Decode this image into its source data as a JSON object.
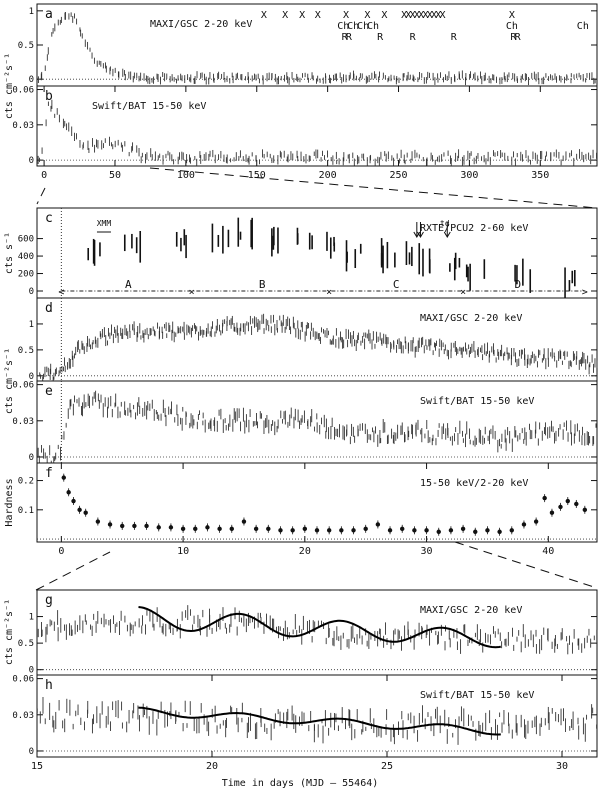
{
  "chart_data": [
    {
      "id": "a",
      "type": "scatter",
      "panel_letter": "a",
      "label": "MAXI/GSC 2-20 keV",
      "xlim": [
        -5,
        390
      ],
      "ylim": [
        -0.1,
        1.1
      ],
      "yticks": [
        {
          "v": 0,
          "t": "0"
        },
        {
          "v": 0.5,
          "t": "0.5"
        },
        {
          "v": 1,
          "t": "1"
        }
      ],
      "xticks": [],
      "ylabel": "",
      "profile": [
        [
          -5,
          0.01
        ],
        [
          0,
          0.02
        ],
        [
          3,
          0.45
        ],
        [
          8,
          0.8
        ],
        [
          16,
          0.95
        ],
        [
          22,
          0.9
        ],
        [
          28,
          0.6
        ],
        [
          35,
          0.3
        ],
        [
          45,
          0.12
        ],
        [
          60,
          0.04
        ],
        [
          80,
          0.02
        ],
        [
          200,
          0.02
        ],
        [
          390,
          0.02
        ]
      ],
      "noise": 0.05,
      "n_points": 260,
      "zero_line": true,
      "marks": {
        "x": [
          155,
          170,
          182,
          193,
          213,
          228,
          240,
          254,
          257,
          260,
          263,
          266,
          269,
          272,
          275,
          278,
          281,
          330
        ],
        "x_label": "X",
        "ch": [
          211,
          218,
          225,
          232,
          330,
          380
        ],
        "ch_label": "Ch",
        "r": [
          212,
          215,
          237,
          260,
          289,
          331,
          334
        ],
        "r_label": "R"
      }
    },
    {
      "id": "b",
      "type": "scatter",
      "panel_letter": "b",
      "label": "Swift/BAT 15-50 keV",
      "xlim": [
        -5,
        390
      ],
      "ylim": [
        -0.005,
        0.063
      ],
      "yticks": [
        {
          "v": 0,
          "t": "0"
        },
        {
          "v": 0.03,
          "t": "0.03"
        },
        {
          "v": 0.06,
          "t": "0.06"
        }
      ],
      "xticks": [
        {
          "v": 0,
          "t": "0"
        },
        {
          "v": 50,
          "t": "50"
        },
        {
          "v": 100,
          "t": "100"
        },
        {
          "v": 150,
          "t": "150"
        },
        {
          "v": 200,
          "t": "200"
        },
        {
          "v": 250,
          "t": "250"
        },
        {
          "v": 300,
          "t": "300"
        },
        {
          "v": 350,
          "t": "350"
        }
      ],
      "ylabel": "cts cm⁻²s⁻¹",
      "profile": [
        [
          -5,
          0.001
        ],
        [
          0,
          0.01
        ],
        [
          3,
          0.05
        ],
        [
          8,
          0.04
        ],
        [
          15,
          0.03
        ],
        [
          30,
          0.01
        ],
        [
          45,
          0.015
        ],
        [
          55,
          0.012
        ],
        [
          70,
          0.003
        ],
        [
          100,
          0.002
        ],
        [
          390,
          0.002
        ]
      ],
      "noise": 0.004,
      "n_points": 230,
      "zero_line": true
    },
    {
      "id": "c",
      "type": "scatter",
      "panel_letter": "c",
      "label": "RXTE/PCU2 2-60 keV",
      "xlim": [
        -2,
        44
      ],
      "ylim": [
        -80,
        950
      ],
      "yticks": [
        {
          "v": 0,
          "t": "0"
        },
        {
          "v": 200,
          "t": "200"
        },
        {
          "v": 400,
          "t": "400"
        },
        {
          "v": 600,
          "t": "600"
        }
      ],
      "xticks": [],
      "ylabel": "cts s⁻¹",
      "profile": [
        [
          3,
          480
        ],
        [
          6,
          520
        ],
        [
          10,
          560
        ],
        [
          13,
          620
        ],
        [
          15,
          680
        ],
        [
          18,
          600
        ],
        [
          20,
          580
        ],
        [
          22,
          520
        ],
        [
          24,
          430
        ],
        [
          26,
          420
        ],
        [
          28,
          380
        ],
        [
          30,
          330
        ],
        [
          32,
          290
        ],
        [
          34,
          200
        ],
        [
          38,
          160
        ],
        [
          42,
          120
        ]
      ],
      "noise": 60,
      "n_points": 70,
      "zero_line": false,
      "annotations": [
        {
          "x": 3.5,
          "text": "XMM"
        },
        {
          "x": 31.5,
          "text": "td"
        }
      ],
      "states": [
        {
          "text": "A",
          "x": 5.5
        },
        {
          "text": "B",
          "x": 16.5
        },
        {
          "text": "C",
          "x": 27.5
        },
        {
          "text": "D",
          "x": 37.5
        }
      ],
      "state_boundaries": [
        0,
        10.7,
        22,
        33,
        43
      ]
    },
    {
      "id": "d",
      "type": "scatter",
      "panel_letter": "d",
      "label": "MAXI/GSC 2-20 keV",
      "xlim": [
        -2,
        44
      ],
      "ylim": [
        -0.1,
        1.5
      ],
      "yticks": [
        {
          "v": 0,
          "t": "0"
        },
        {
          "v": 0.5,
          "t": "0.5"
        },
        {
          "v": 1,
          "t": "1"
        }
      ],
      "xticks": [],
      "ylabel": "",
      "profile": [
        [
          -2,
          0.02
        ],
        [
          -0.2,
          0.02
        ],
        [
          0.5,
          0.3
        ],
        [
          2,
          0.6
        ],
        [
          5,
          0.85
        ],
        [
          10,
          0.85
        ],
        [
          14,
          0.95
        ],
        [
          18,
          1.0
        ],
        [
          22,
          0.75
        ],
        [
          26,
          0.65
        ],
        [
          30,
          0.55
        ],
        [
          34,
          0.45
        ],
        [
          38,
          0.35
        ],
        [
          42,
          0.3
        ],
        [
          44,
          0.2
        ]
      ],
      "noise": 0.12,
      "n_points": 380,
      "zero_line": true
    },
    {
      "id": "e",
      "type": "scatter",
      "panel_letter": "e",
      "label": "Swift/BAT 15-50 keV",
      "xlim": [
        -2,
        44
      ],
      "ylim": [
        -0.005,
        0.063
      ],
      "yticks": [
        {
          "v": 0,
          "t": "0"
        },
        {
          "v": 0.03,
          "t": "0.03"
        },
        {
          "v": 0.06,
          "t": "0.06"
        }
      ],
      "xticks": [],
      "ylabel": "cts cm⁻²s⁻¹",
      "profile": [
        [
          -2,
          0.001
        ],
        [
          -0.1,
          0.002
        ],
        [
          0.6,
          0.045
        ],
        [
          2,
          0.045
        ],
        [
          6,
          0.04
        ],
        [
          12,
          0.03
        ],
        [
          20,
          0.03
        ],
        [
          23,
          0.02
        ],
        [
          30,
          0.02
        ],
        [
          36,
          0.015
        ],
        [
          40,
          0.02
        ],
        [
          44,
          0.02
        ]
      ],
      "noise": 0.007,
      "n_points": 300,
      "zero_line": true
    },
    {
      "id": "f",
      "type": "scatter",
      "panel_letter": "f",
      "label": "15-50 keV/2-20 keV",
      "xlim": [
        -2,
        44
      ],
      "ylim": [
        -0.01,
        0.26
      ],
      "yticks": [
        {
          "v": 0.1,
          "t": "0.1"
        },
        {
          "v": 0.2,
          "t": "0.2"
        }
      ],
      "xticks": [
        {
          "v": 0,
          "t": "0"
        },
        {
          "v": 10,
          "t": "10"
        },
        {
          "v": 20,
          "t": "20"
        },
        {
          "v": 30,
          "t": "30"
        },
        {
          "v": 40,
          "t": "40"
        }
      ],
      "ylabel": "Hardness",
      "points": [
        [
          0.2,
          0.21
        ],
        [
          0.6,
          0.16
        ],
        [
          1,
          0.13
        ],
        [
          1.5,
          0.1
        ],
        [
          2,
          0.09
        ],
        [
          3,
          0.06
        ],
        [
          4,
          0.05
        ],
        [
          5,
          0.045
        ],
        [
          6,
          0.045
        ],
        [
          7,
          0.045
        ],
        [
          8,
          0.04
        ],
        [
          9,
          0.04
        ],
        [
          10,
          0.035
        ],
        [
          11,
          0.035
        ],
        [
          12,
          0.04
        ],
        [
          13,
          0.035
        ],
        [
          14,
          0.035
        ],
        [
          15,
          0.06
        ],
        [
          16,
          0.035
        ],
        [
          17,
          0.035
        ],
        [
          18,
          0.03
        ],
        [
          19,
          0.03
        ],
        [
          20,
          0.035
        ],
        [
          21,
          0.03
        ],
        [
          22,
          0.03
        ],
        [
          23,
          0.03
        ],
        [
          24,
          0.03
        ],
        [
          25,
          0.035
        ],
        [
          26,
          0.05
        ],
        [
          27,
          0.03
        ],
        [
          28,
          0.035
        ],
        [
          29,
          0.03
        ],
        [
          30,
          0.03
        ],
        [
          31,
          0.025
        ],
        [
          32,
          0.03
        ],
        [
          33,
          0.035
        ],
        [
          34,
          0.025
        ],
        [
          35,
          0.03
        ],
        [
          36,
          0.025
        ],
        [
          37,
          0.03
        ],
        [
          38,
          0.05
        ],
        [
          39,
          0.06
        ],
        [
          39.7,
          0.14
        ],
        [
          40.3,
          0.09
        ],
        [
          41,
          0.11
        ],
        [
          41.6,
          0.13
        ],
        [
          42.3,
          0.12
        ],
        [
          43,
          0.1
        ]
      ],
      "zero_line": true
    },
    {
      "id": "g",
      "type": "line",
      "panel_letter": "g",
      "label": "MAXI/GSC 2-20 keV",
      "xlim": [
        15,
        31
      ],
      "ylim": [
        -0.1,
        1.5
      ],
      "yticks": [
        {
          "v": 0,
          "t": "0"
        },
        {
          "v": 0.5,
          "t": "0.5"
        },
        {
          "v": 1,
          "t": "1"
        }
      ],
      "xticks": [],
      "ylabel": "cts cm⁻²s⁻¹",
      "profile": [
        [
          15,
          0.8
        ],
        [
          18,
          0.9
        ],
        [
          21,
          0.9
        ],
        [
          24,
          0.65
        ],
        [
          27,
          0.6
        ],
        [
          31,
          0.55
        ]
      ],
      "noise": 0.18,
      "n_points": 240,
      "zero_line": true,
      "model": {
        "x0": 17.9,
        "x1": 28.3,
        "mean": [
          0.98,
          -0.04
        ],
        "amp": [
          0.2,
          -0.005
        ],
        "period": 2.9,
        "phase": 17.9
      }
    },
    {
      "id": "h",
      "type": "line",
      "panel_letter": "h",
      "label": "Swift/BAT 15-50 keV",
      "xlim": [
        15,
        31
      ],
      "ylim": [
        -0.005,
        0.063
      ],
      "yticks": [
        {
          "v": 0,
          "t": "0"
        },
        {
          "v": 0.03,
          "t": "0.03"
        },
        {
          "v": 0.06,
          "t": "0.06"
        }
      ],
      "xticks": [
        {
          "v": 15,
          "t": "15"
        },
        {
          "v": 20,
          "t": "20"
        },
        {
          "v": 25,
          "t": "25"
        },
        {
          "v": 30,
          "t": "30"
        }
      ],
      "ylabel": "",
      "xlabel": "Time in days (MJD – 55464)",
      "profile": [
        [
          15,
          0.028
        ],
        [
          18,
          0.03
        ],
        [
          21,
          0.026
        ],
        [
          24,
          0.02
        ],
        [
          27,
          0.022
        ],
        [
          31,
          0.025
        ]
      ],
      "noise": 0.01,
      "n_points": 210,
      "zero_line": true,
      "model": {
        "x0": 17.9,
        "x1": 28.3,
        "mean": [
          0.033,
          -0.0016
        ],
        "amp": [
          0.003,
          0
        ],
        "period": 2.9,
        "phase": 17.9
      }
    }
  ]
}
